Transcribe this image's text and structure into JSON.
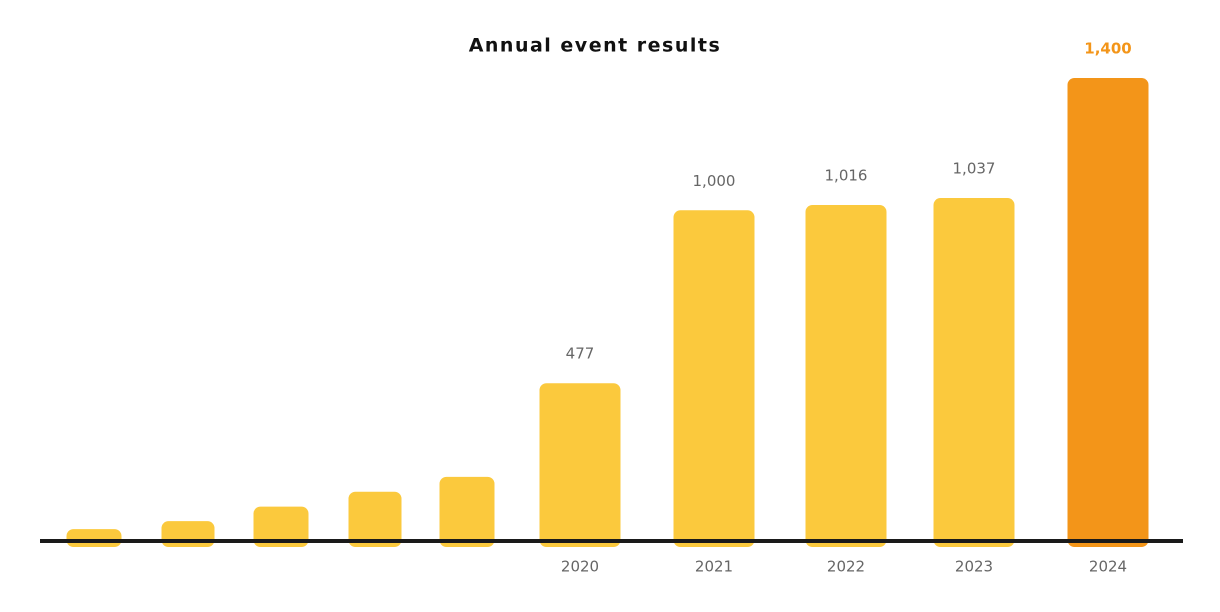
{
  "chart_data": {
    "type": "bar",
    "title": "Annual event results",
    "categories": [
      null,
      null,
      null,
      null,
      null,
      "2020",
      "2021",
      "2022",
      "2023",
      "2024"
    ],
    "values": [
      36,
      60,
      104,
      149,
      194,
      477,
      1000,
      1016,
      1037,
      1400
    ],
    "value_labels": [
      null,
      null,
      null,
      null,
      null,
      "477",
      "1,000",
      "1,016",
      "1,037",
      "1,400"
    ],
    "color": "#fbc93d",
    "colors": [
      "#fbc93d",
      "#fbc93d",
      "#fbc93d",
      "#fbc93d",
      "#fbc93d",
      "#fbc93d",
      "#fbc93d",
      "#fbc93d",
      "#fbc93d",
      "#f39519"
    ]
  }
}
